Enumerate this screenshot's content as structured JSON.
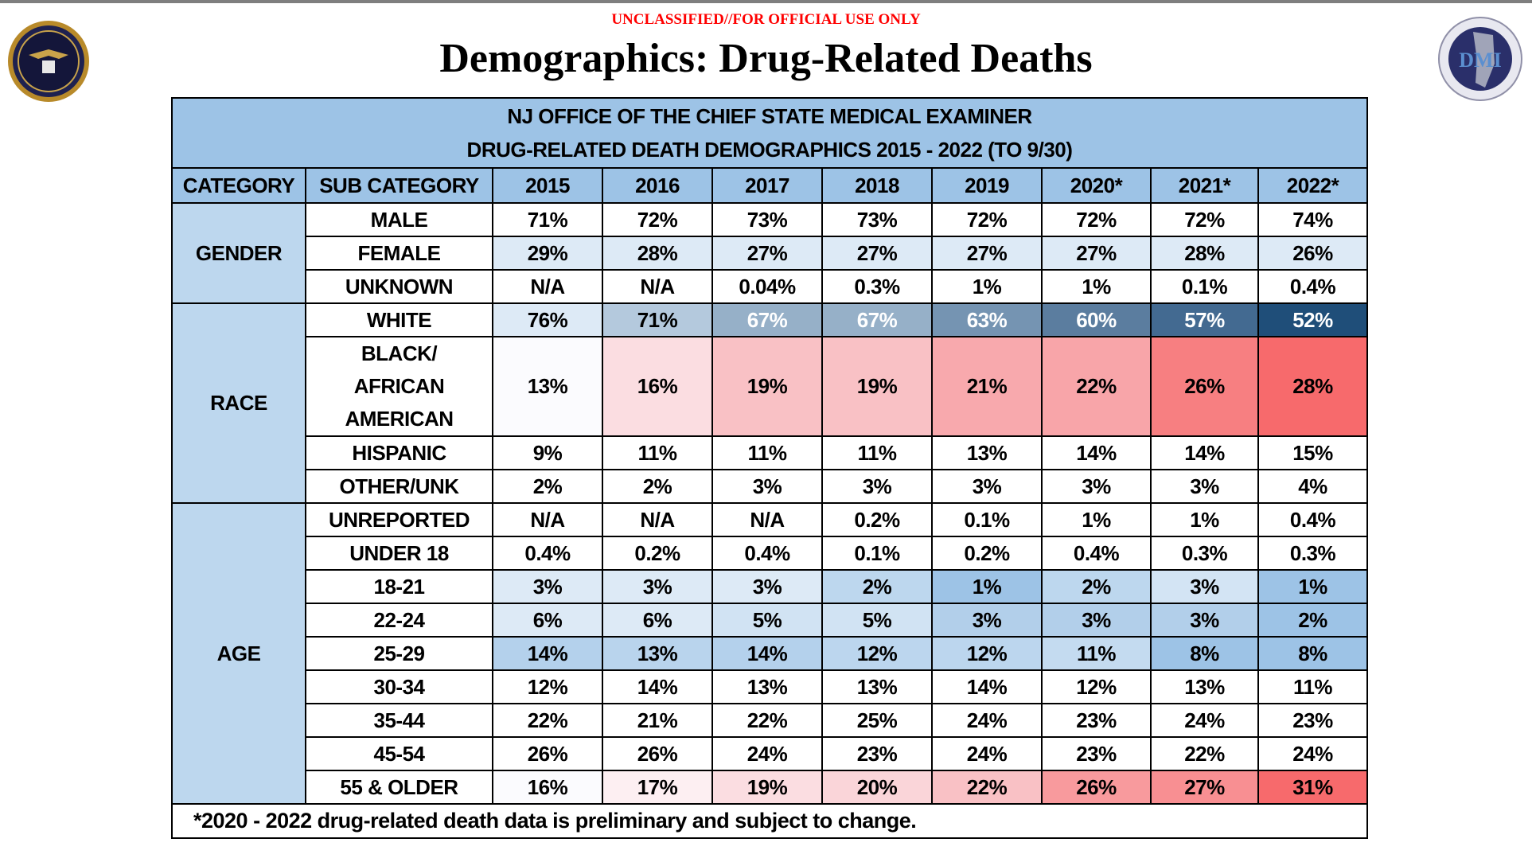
{
  "classification": "UNCLASSIFIED//FOR OFFICIAL USE ONLY",
  "title": "Demographics: Drug-Related Deaths",
  "logos": {
    "left": "nj-regional-operations-intelligence-center-seal",
    "right_text": "DMI"
  },
  "table": {
    "title_line1": "NJ OFFICE OF THE CHIEF STATE MEDICAL EXAMINER",
    "title_line2": "DRUG-RELATED DEATH DEMOGRAPHICS 2015 - 2022 (TO 9/30)",
    "headers": [
      "CATEGORY",
      "SUB CATEGORY",
      "2015",
      "2016",
      "2017",
      "2018",
      "2019",
      "2020*",
      "2021*",
      "2022*"
    ],
    "groups": [
      {
        "category": "GENDER",
        "rows": [
          {
            "sub": "MALE",
            "values": [
              "71%",
              "72%",
              "73%",
              "73%",
              "72%",
              "72%",
              "72%",
              "74%"
            ]
          },
          {
            "sub": "FEMALE",
            "values": [
              "29%",
              "28%",
              "27%",
              "27%",
              "27%",
              "27%",
              "28%",
              "26%"
            ],
            "colors": [
              "#ddeaf6",
              "#ddeaf6",
              "#ddeaf6",
              "#ddeaf6",
              "#ddeaf6",
              "#ddeaf6",
              "#ddeaf6",
              "#ddeaf6"
            ]
          },
          {
            "sub": "UNKNOWN",
            "values": [
              "N/A",
              "N/A",
              "0.04%",
              "0.3%",
              "1%",
              "1%",
              "0.1%",
              "0.4%"
            ]
          }
        ]
      },
      {
        "category": "RACE",
        "rows": [
          {
            "sub": "WHITE",
            "values": [
              "76%",
              "71%",
              "67%",
              "67%",
              "63%",
              "60%",
              "57%",
              "52%"
            ],
            "colors": [
              "#ddeaf6",
              "#b4c9dd",
              "#96b0c8",
              "#96b0c8",
              "#7594b2",
              "#5b7d9f",
              "#436a91",
              "#1f4e79"
            ],
            "text_colors": [
              "#000000",
              "#000000",
              "#ffffff",
              "#ffffff",
              "#ffffff",
              "#ffffff",
              "#ffffff",
              "#ffffff"
            ]
          },
          {
            "sub": "BLACK/\nAFRICAN\nAMERICAN",
            "values": [
              "13%",
              "16%",
              "19%",
              "19%",
              "21%",
              "22%",
              "26%",
              "28%"
            ],
            "colors": [
              "#fbfbfe",
              "#fbdde1",
              "#f9c1c5",
              "#f9c1c5",
              "#f8a9ad",
              "#f8a5a9",
              "#f77f81",
              "#f76a6c"
            ],
            "tall": true
          },
          {
            "sub": "HISPANIC",
            "values": [
              "9%",
              "11%",
              "11%",
              "11%",
              "13%",
              "14%",
              "14%",
              "15%"
            ]
          },
          {
            "sub": "OTHER/UNK",
            "values": [
              "2%",
              "2%",
              "3%",
              "3%",
              "3%",
              "3%",
              "3%",
              "4%"
            ]
          }
        ]
      },
      {
        "category": "AGE",
        "rows": [
          {
            "sub": "UNREPORTED",
            "values": [
              "N/A",
              "N/A",
              "N/A",
              "0.2%",
              "0.1%",
              "1%",
              "1%",
              "0.4%"
            ]
          },
          {
            "sub": "UNDER 18",
            "values": [
              "0.4%",
              "0.2%",
              "0.4%",
              "0.1%",
              "0.2%",
              "0.4%",
              "0.3%",
              "0.3%"
            ]
          },
          {
            "sub": "18-21",
            "values": [
              "3%",
              "3%",
              "3%",
              "2%",
              "1%",
              "2%",
              "3%",
              "1%"
            ],
            "colors": [
              "#ddeaf6",
              "#ddeaf6",
              "#ddeaf6",
              "#bdd7ee",
              "#9dc3e6",
              "#bdd7ee",
              "#d3e4f4",
              "#9dc3e6"
            ]
          },
          {
            "sub": "22-24",
            "values": [
              "6%",
              "6%",
              "5%",
              "5%",
              "3%",
              "3%",
              "3%",
              "2%"
            ],
            "colors": [
              "#ddeaf6",
              "#ddeaf6",
              "#d1e3f3",
              "#d1e3f3",
              "#b2cfea",
              "#b2cfea",
              "#b2cfea",
              "#9dc3e6"
            ]
          },
          {
            "sub": "25-29",
            "values": [
              "14%",
              "13%",
              "14%",
              "12%",
              "12%",
              "11%",
              "8%",
              "8%"
            ],
            "colors": [
              "#b4d1ec",
              "#b9d4ed",
              "#b4d1ec",
              "#bcd6ee",
              "#bcd6ee",
              "#c4dbf0",
              "#9dc3e6",
              "#9dc3e6"
            ]
          },
          {
            "sub": "30-34",
            "values": [
              "12%",
              "14%",
              "13%",
              "13%",
              "14%",
              "12%",
              "13%",
              "11%"
            ]
          },
          {
            "sub": "35-44",
            "values": [
              "22%",
              "21%",
              "22%",
              "25%",
              "24%",
              "23%",
              "24%",
              "23%"
            ]
          },
          {
            "sub": "45-54",
            "values": [
              "26%",
              "26%",
              "24%",
              "23%",
              "24%",
              "23%",
              "22%",
              "24%"
            ]
          },
          {
            "sub": "55 & OLDER",
            "values": [
              "16%",
              "17%",
              "19%",
              "20%",
              "22%",
              "26%",
              "27%",
              "31%"
            ],
            "colors": [
              "#fbfbfe",
              "#fdeff2",
              "#fbdde1",
              "#fad5d9",
              "#f9c1c5",
              "#f89a9d",
              "#f88f92",
              "#f76a6c"
            ]
          }
        ]
      }
    ],
    "footnote": "*2020 - 2022 drug-related death data is preliminary and subject to change."
  }
}
